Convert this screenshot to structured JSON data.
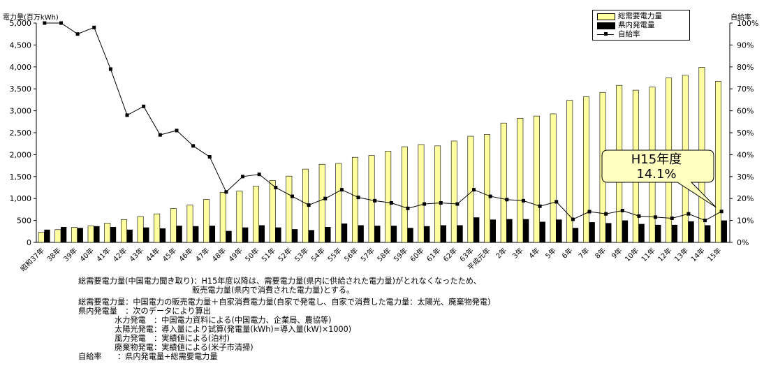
{
  "chart_data": {
    "type": "bar",
    "categories": [
      "昭和37年",
      "38年",
      "39年",
      "40年",
      "41年",
      "42年",
      "43年",
      "44年",
      "45年",
      "46年",
      "47年",
      "48年",
      "49年",
      "50年",
      "51年",
      "52年",
      "53年",
      "54年",
      "55年",
      "56年",
      "57年",
      "58年",
      "59年",
      "60年",
      "61年",
      "62年",
      "63年",
      "平成元年",
      "2年",
      "3年",
      "4年",
      "5年",
      "6年",
      "7年",
      "8年",
      "9年",
      "10年",
      "11年",
      "12年",
      "13年",
      "14年",
      "15年"
    ],
    "series": [
      {
        "name": "総需要電力量",
        "axis": "left",
        "type": "bar",
        "color": "#ffffa0",
        "values": [
          230,
          290,
          340,
          380,
          440,
          520,
          590,
          650,
          770,
          850,
          980,
          1140,
          1170,
          1280,
          1410,
          1510,
          1670,
          1780,
          1800,
          1940,
          1980,
          2080,
          2180,
          2230,
          2200,
          2310,
          2420,
          2460,
          2720,
          2830,
          2880,
          2930,
          3240,
          3320,
          3420,
          3580,
          3470,
          3540,
          3750,
          3810,
          3990,
          3670
        ]
      },
      {
        "name": "県内発電量",
        "axis": "left",
        "type": "bar",
        "color": "#000000",
        "values": [
          290,
          350,
          330,
          370,
          350,
          290,
          340,
          320,
          380,
          370,
          380,
          260,
          340,
          390,
          340,
          300,
          280,
          350,
          430,
          390,
          380,
          380,
          330,
          370,
          390,
          390,
          570,
          520,
          530,
          530,
          470,
          520,
          330,
          460,
          440,
          500,
          420,
          400,
          400,
          480,
          390,
          500
        ]
      },
      {
        "name": "自給率",
        "axis": "right",
        "type": "line",
        "color": "#000000",
        "values": [
          100,
          100,
          95,
          98,
          79,
          58,
          62,
          49,
          51,
          44,
          39,
          23,
          30,
          31,
          25,
          21,
          17,
          20,
          24,
          20.5,
          19,
          18,
          15.5,
          17.5,
          18,
          17.5,
          24,
          21,
          19.5,
          19,
          16.5,
          18.5,
          10.5,
          14,
          13,
          14.5,
          12,
          11.5,
          11,
          13,
          10,
          14.1
        ]
      }
    ],
    "ylabel": "電力量(百万kWh)",
    "y2label": "自給率",
    "ylim": [
      0,
      5000
    ],
    "y2lim": [
      0,
      100
    ],
    "yticks": [
      "0",
      "500",
      "1,000",
      "1,500",
      "2,000",
      "2,500",
      "3,000",
      "3,500",
      "4,000",
      "4,500",
      "5,000"
    ],
    "y2ticks": [
      "0%",
      "10%",
      "20%",
      "30%",
      "40%",
      "50%",
      "60%",
      "70%",
      "80%",
      "90%",
      "100%"
    ],
    "legend_position": "top-right",
    "grid": false,
    "annotation": {
      "line1": "H15年度",
      "line2": "14.1%",
      "points_to": "15年"
    }
  },
  "legend": {
    "items": [
      {
        "label": "総需要電力量"
      },
      {
        "label": "県内発電量"
      },
      {
        "label": "自給率"
      }
    ]
  },
  "notes": [
    "総需要電力量(中国電力聞き取り)：H15年度以降は、需要電力量(県内に供給された電力量)がとれなくなったため、",
    "販売電力量(県内で消費された電力量)とする。",
    "総需要電力量：中国電力の販売電力量＋自家消費電力量(自家で発電し、自家で消費した電力量：太陽光、廃棄物発電)",
    "県内発電量　：次のデータにより算出",
    "水力発電　：中国電力資料による(中国電力、企業局、農協等)",
    "太陽光発電：導入量により試算(発電量(kWh)=導入量(kW)×1000)",
    "風力発電　：実績値による(泊村)",
    "廃棄物発電：実績値による(米子市清掃)",
    "自給率　　：県内発電量÷総需要電力量"
  ]
}
